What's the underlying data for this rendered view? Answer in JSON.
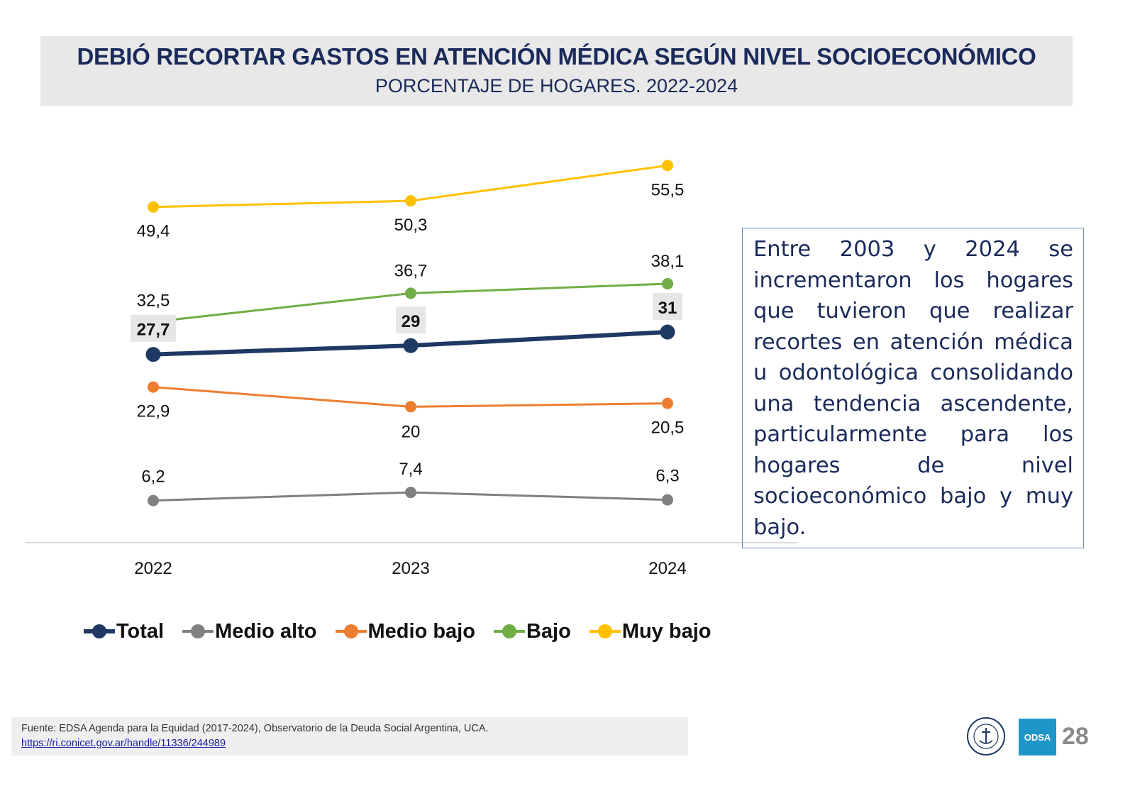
{
  "header": {
    "title": "DEBIÓ RECORTAR GASTOS EN ATENCIÓN MÉDICA SEGÚN NIVEL SOCIOECONÓMICO",
    "subtitle": "PORCENTAJE DE HOGARES. 2022-2024"
  },
  "chart_data": {
    "type": "line",
    "title": "DEBIÓ RECORTAR GASTOS EN ATENCIÓN MÉDICA SEGÚN NIVEL SOCIOECONÓMICO",
    "subtitle": "PORCENTAJE DE HOGARES. 2022-2024",
    "xlabel": "",
    "ylabel": "",
    "categories": [
      "2022",
      "2023",
      "2024"
    ],
    "ylim": [
      0,
      60
    ],
    "grid": false,
    "legend_position": "bottom",
    "series": [
      {
        "name": "Total",
        "color": "#1f3864",
        "values": [
          27.7,
          29,
          31
        ],
        "labels": [
          "27,7",
          "29",
          "31"
        ],
        "emphasis": true
      },
      {
        "name": "Medio alto",
        "color": "#808080",
        "values": [
          6.2,
          7.4,
          6.3
        ],
        "labels": [
          "6,2",
          "7,4",
          "6,3"
        ]
      },
      {
        "name": "Medio bajo",
        "color": "#ed7d31",
        "values": [
          22.9,
          20,
          20.5
        ],
        "labels": [
          "22,9",
          "20",
          "20,5"
        ]
      },
      {
        "name": "Bajo",
        "color": "#70ad47",
        "values": [
          32.5,
          36.7,
          38.1
        ],
        "labels": [
          "32,5",
          "36,7",
          "38,1"
        ]
      },
      {
        "name": "Muy bajo",
        "color": "#ffc000",
        "values": [
          49.4,
          50.3,
          55.5
        ],
        "labels": [
          "49,4",
          "50,3",
          "55,5"
        ]
      }
    ]
  },
  "note": {
    "text": "Entre 2003 y 2024 se incrementaron los hogares que tuvieron que realizar recortes en atención médica u odontológica consolidando una tendencia ascendente, particularmente para los hogares de nivel socioeconómico bajo y muy bajo."
  },
  "footer": {
    "source": "Fuente: EDSA Agenda para la Equidad (2017-2024), Observatorio de la Deuda Social Argentina, UCA.",
    "link": "https://ri.conicet.gov.ar/handle/11336/244989",
    "odsa_logo": "ODSA",
    "page_number": "28"
  }
}
